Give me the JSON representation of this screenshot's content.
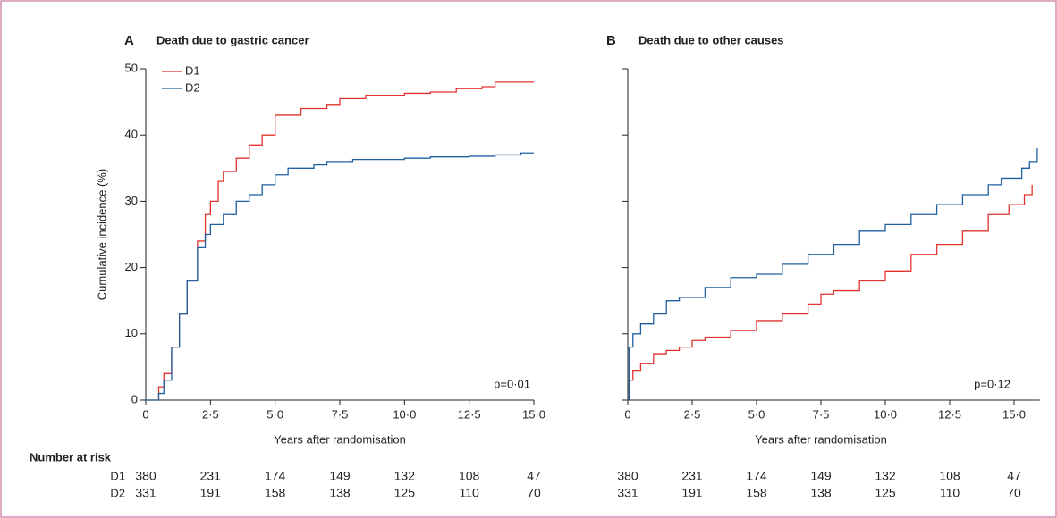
{
  "chart_data": [
    {
      "type": "step",
      "panel": "A",
      "title": "Death due to gastric cancer",
      "ylabel": "Cumulative incidence (%)",
      "xlabel": "Years after randomisation",
      "xlim": [
        0,
        15
      ],
      "ylim": [
        0,
        50
      ],
      "xticks": [
        0,
        {
          "value": 2.5,
          "label": "2·5"
        },
        {
          "value": 5,
          "label": "5·0"
        },
        {
          "value": 7.5,
          "label": "7·5"
        },
        {
          "value": 10,
          "label": "10·0"
        },
        {
          "value": 12.5,
          "label": "12·5"
        },
        {
          "value": 15,
          "label": "15·0"
        }
      ],
      "yticks": [
        0,
        10,
        20,
        30,
        40,
        50
      ],
      "ytick_labels": true,
      "legend": "upper left",
      "annotation": "p=0·01",
      "series": [
        {
          "name": "D1",
          "color": "#e0332f",
          "x": [
            0,
            0.3,
            0.5,
            0.7,
            1.0,
            1.3,
            1.6,
            2.0,
            2.3,
            2.5,
            2.8,
            3.0,
            3.5,
            4.0,
            4.5,
            5.0,
            5.5,
            6.0,
            7.0,
            7.5,
            8.5,
            10,
            11,
            12,
            13,
            13.5,
            15
          ],
          "values": [
            0,
            0,
            2,
            4,
            8,
            13,
            18,
            24,
            28,
            30,
            33,
            34.5,
            36.5,
            38.5,
            40,
            43,
            43,
            44,
            44.5,
            45.5,
            46,
            46.3,
            46.5,
            47,
            47.3,
            48,
            48
          ]
        },
        {
          "name": "D2",
          "color": "#1f5fa0",
          "x": [
            0,
            0.3,
            0.5,
            0.7,
            1.0,
            1.3,
            1.6,
            2.0,
            2.3,
            2.5,
            3.0,
            3.5,
            4.0,
            4.5,
            5.0,
            5.5,
            6.5,
            7,
            8,
            10,
            11,
            12.5,
            13.5,
            14.5,
            15
          ],
          "values": [
            0,
            0,
            1,
            3,
            8,
            13,
            18,
            23,
            25,
            26.5,
            28,
            30,
            31,
            32.5,
            34,
            35,
            35.5,
            36,
            36.3,
            36.5,
            36.7,
            36.8,
            37,
            37.3,
            37.3
          ]
        }
      ],
      "risk_table": {
        "title": "Number at risk",
        "rows": [
          {
            "name": "D1",
            "values": [
              380,
              231,
              174,
              149,
              132,
              108,
              47
            ]
          },
          {
            "name": "D2",
            "values": [
              331,
              191,
              158,
              138,
              125,
              110,
              70
            ]
          }
        ]
      }
    },
    {
      "type": "step",
      "panel": "B",
      "title": "Death due to other causes",
      "xlabel": "Years after randomisation",
      "xlim": [
        0,
        16
      ],
      "ylim": [
        0,
        50
      ],
      "xticks": [
        0,
        {
          "value": 2.5,
          "label": "2·5"
        },
        {
          "value": 5,
          "label": "5·0"
        },
        {
          "value": 7.5,
          "label": "7·5"
        },
        {
          "value": 10,
          "label": "10·0"
        },
        {
          "value": 12.5,
          "label": "12·5"
        },
        {
          "value": 15,
          "label": "15·0"
        }
      ],
      "yticks": [
        0,
        10,
        20,
        30,
        40,
        50
      ],
      "ytick_labels": false,
      "annotation": "p=0·12",
      "series": [
        {
          "color": "#e0332f",
          "x": [
            0,
            0.05,
            0.2,
            0.5,
            1,
            1.5,
            2,
            2.5,
            3,
            4,
            5,
            6,
            7,
            7.5,
            8,
            9,
            10,
            11,
            12,
            13,
            14,
            14.8,
            15.4,
            15.7
          ],
          "values": [
            0,
            3,
            4.5,
            5.5,
            7,
            7.5,
            8,
            9,
            9.5,
            10.5,
            12,
            13,
            14.5,
            16,
            16.5,
            18,
            19.5,
            22,
            23.5,
            25.5,
            28,
            29.5,
            31,
            32.5
          ]
        },
        {
          "color": "#1f5fa0",
          "x": [
            0,
            0.05,
            0.2,
            0.5,
            1,
            1.5,
            2,
            3,
            4,
            5,
            6,
            7,
            8,
            9,
            10,
            11,
            12,
            13,
            14,
            14.5,
            15.3,
            15.6,
            15.9
          ],
          "values": [
            0,
            8,
            10,
            11.5,
            13,
            15,
            15.5,
            17,
            18.5,
            19,
            20.5,
            22,
            23.5,
            25.5,
            26.5,
            28,
            29.5,
            31,
            32.5,
            33.5,
            35,
            36,
            38
          ]
        }
      ],
      "risk_table": {
        "rows": [
          {
            "values": [
              380,
              231,
              174,
              149,
              132,
              108,
              47
            ]
          },
          {
            "values": [
              331,
              191,
              158,
              138,
              125,
              110,
              70
            ]
          }
        ]
      }
    }
  ]
}
